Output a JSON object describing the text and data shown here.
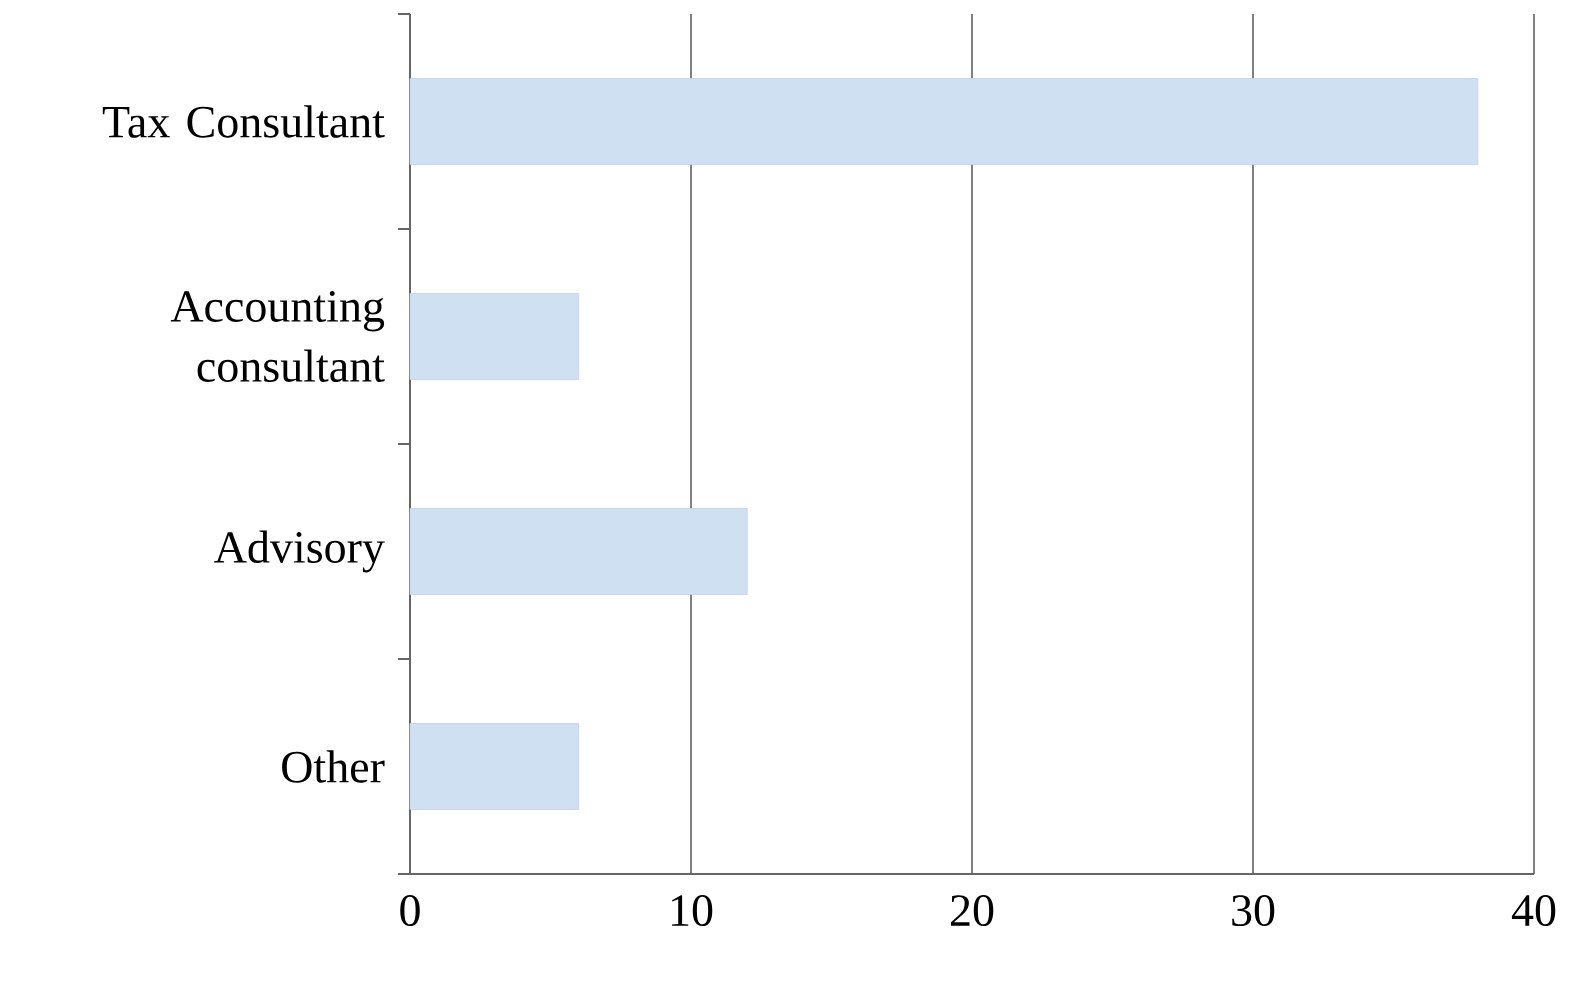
{
  "chart_data": {
    "type": "bar",
    "orientation": "horizontal",
    "categories": [
      "Tax Consultant",
      "Accounting consultant",
      "Advisory",
      "Other"
    ],
    "values": [
      38,
      6,
      12,
      6
    ],
    "color": "#cfe0f2",
    "xlim": [
      0,
      40
    ],
    "xticks": [
      0,
      10,
      20,
      30,
      40
    ],
    "grid": "x"
  }
}
